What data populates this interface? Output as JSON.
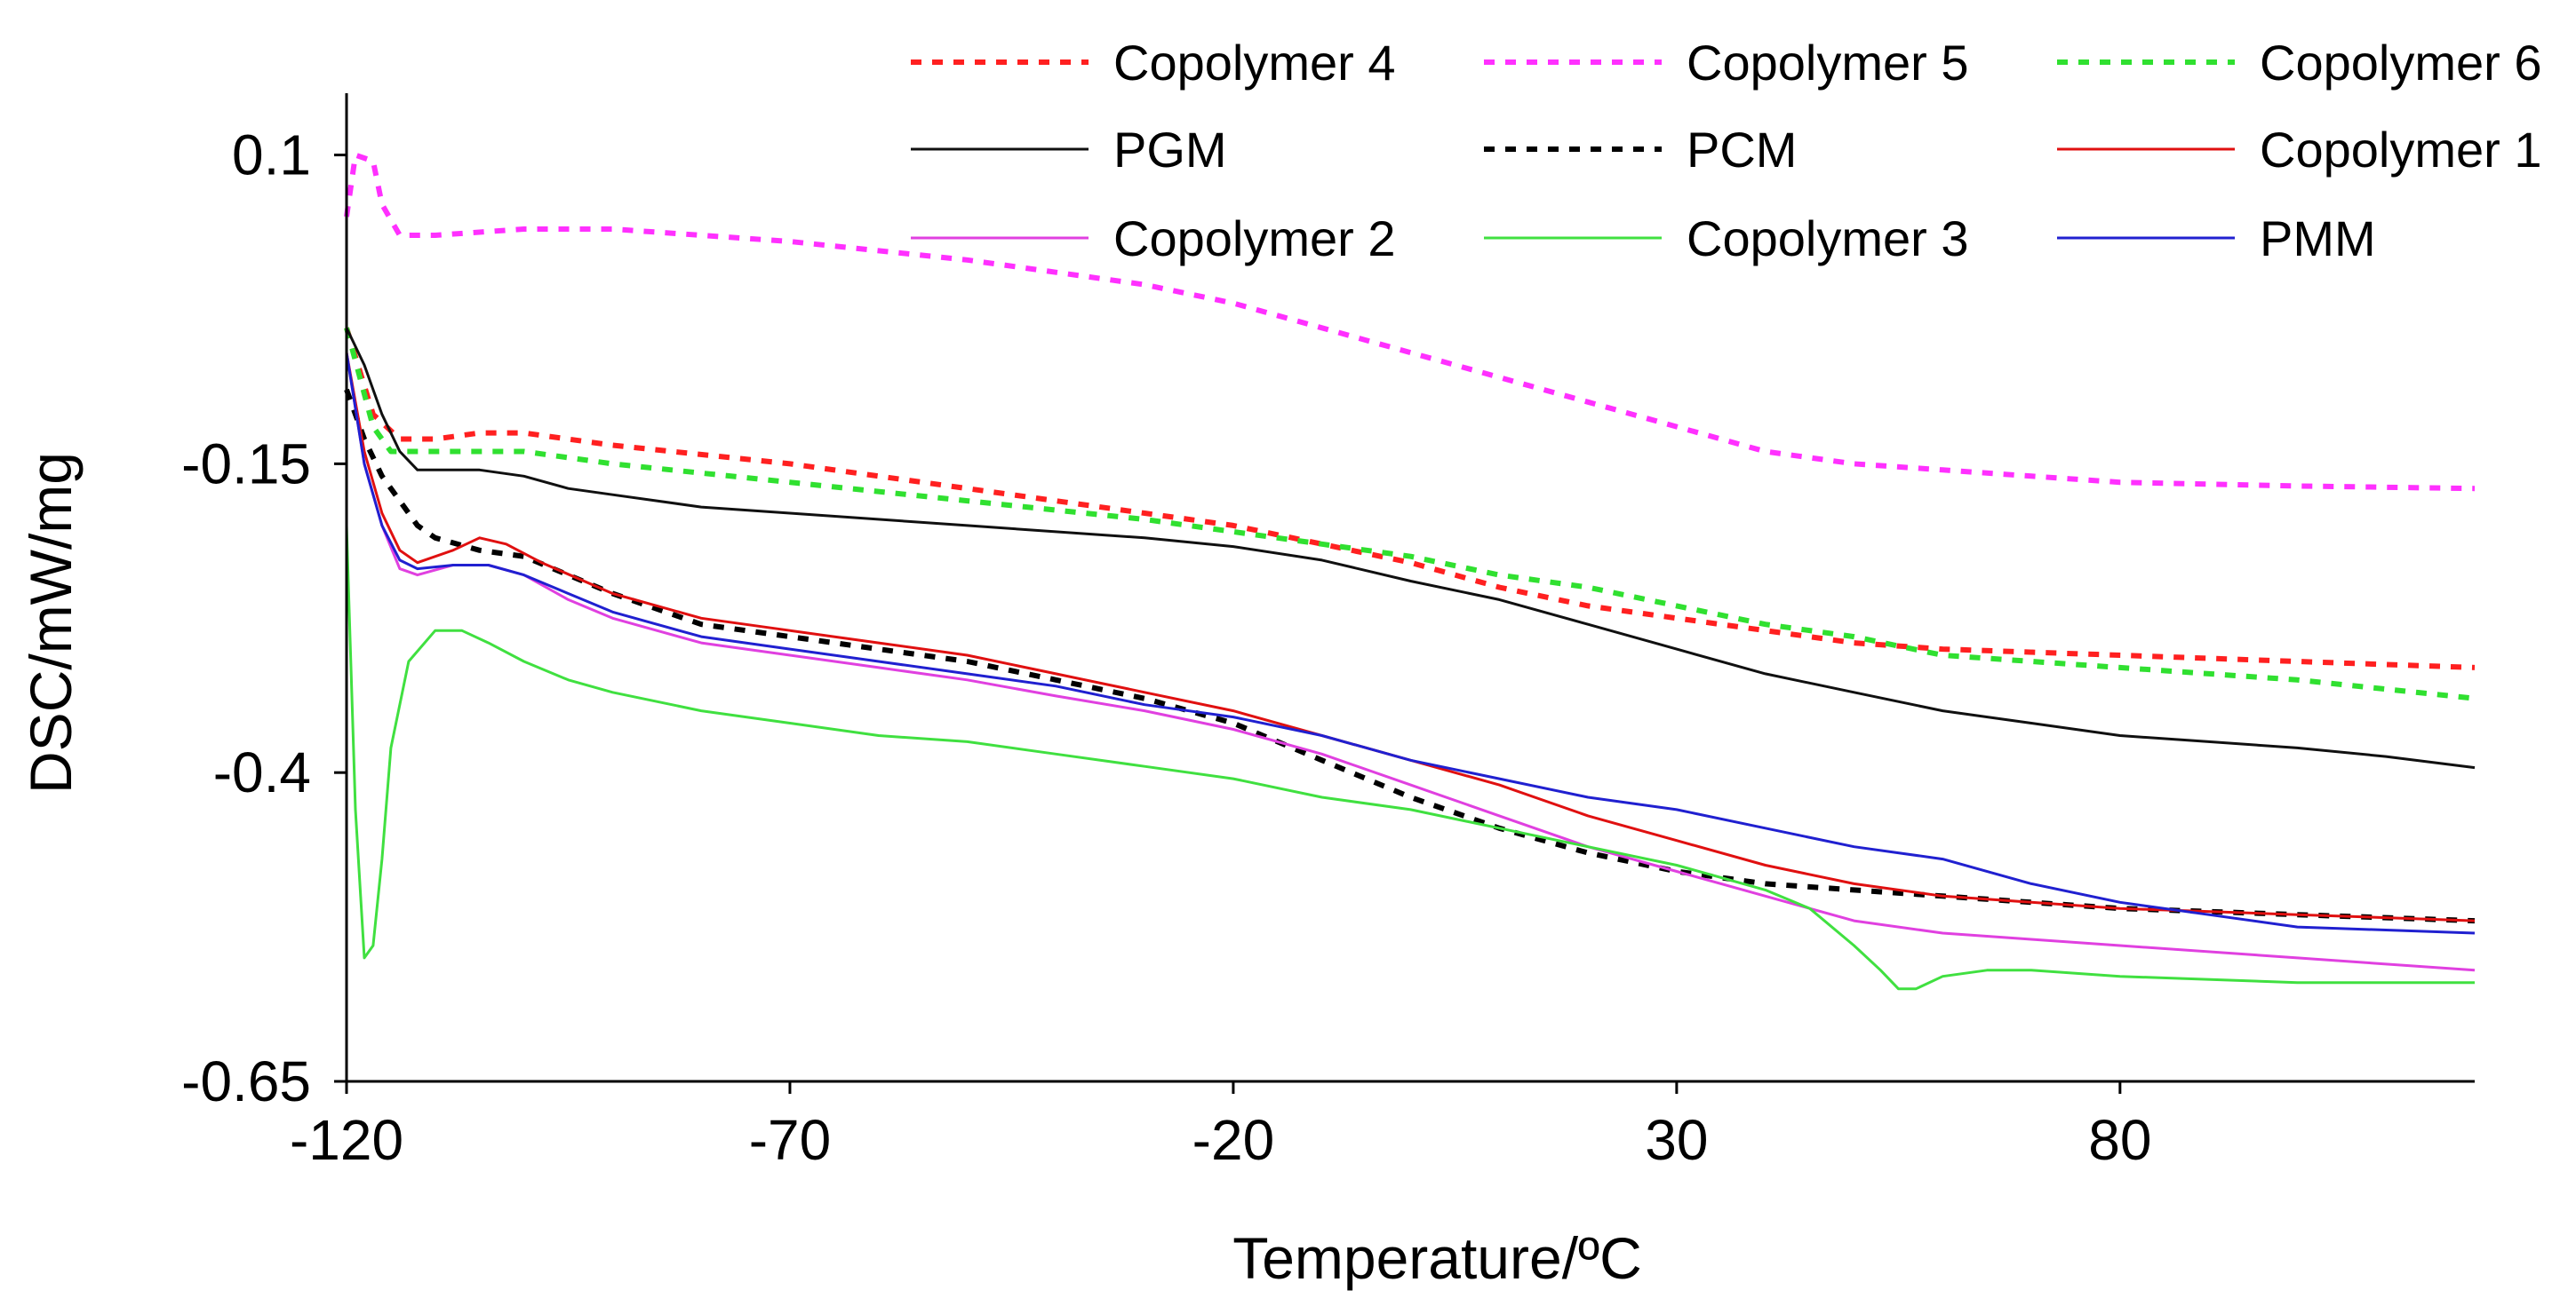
{
  "chart_data": {
    "type": "line",
    "title": "",
    "xlabel": "Temperature/ºC",
    "ylabel": "DSC/mW/mg",
    "xlim": [
      -120,
      120
    ],
    "ylim": [
      -0.65,
      0.15
    ],
    "x_ticks": [
      -120,
      -70,
      -20,
      30,
      80
    ],
    "x_tick_labels": [
      "-120",
      "-70",
      "-20",
      "30",
      "80"
    ],
    "y_ticks": [
      0.1,
      -0.15,
      -0.4,
      -0.65
    ],
    "y_tick_labels": [
      "0.1",
      "-0.15",
      "-0.4",
      "-0.65"
    ],
    "grid": false,
    "legend_position": "top",
    "series": [
      {
        "name": "Copolymer 4",
        "color": "#ff2020",
        "dash": "dotted",
        "points": [
          [
            -120,
            -0.04
          ],
          [
            -117,
            -0.11
          ],
          [
            -114,
            -0.13
          ],
          [
            -110,
            -0.13
          ],
          [
            -105,
            -0.125
          ],
          [
            -100,
            -0.125
          ],
          [
            -90,
            -0.135
          ],
          [
            -70,
            -0.15
          ],
          [
            -50,
            -0.17
          ],
          [
            -30,
            -0.19
          ],
          [
            -20,
            -0.2
          ],
          [
            -10,
            -0.215
          ],
          [
            0,
            -0.23
          ],
          [
            10,
            -0.25
          ],
          [
            20,
            -0.265
          ],
          [
            30,
            -0.275
          ],
          [
            40,
            -0.285
          ],
          [
            50,
            -0.295
          ],
          [
            60,
            -0.3
          ],
          [
            80,
            -0.305
          ],
          [
            100,
            -0.31
          ],
          [
            120,
            -0.315
          ]
        ]
      },
      {
        "name": "Copolymer 5",
        "color": "#ff30ff",
        "dash": "dotted",
        "points": [
          [
            -120,
            0.05
          ],
          [
            -119,
            0.1
          ],
          [
            -117,
            0.095
          ],
          [
            -116,
            0.06
          ],
          [
            -114,
            0.035
          ],
          [
            -110,
            0.035
          ],
          [
            -100,
            0.04
          ],
          [
            -90,
            0.04
          ],
          [
            -70,
            0.03
          ],
          [
            -50,
            0.015
          ],
          [
            -30,
            -0.005
          ],
          [
            -20,
            -0.02
          ],
          [
            -10,
            -0.04
          ],
          [
            0,
            -0.06
          ],
          [
            10,
            -0.08
          ],
          [
            20,
            -0.1
          ],
          [
            30,
            -0.12
          ],
          [
            40,
            -0.14
          ],
          [
            50,
            -0.15
          ],
          [
            60,
            -0.155
          ],
          [
            70,
            -0.16
          ],
          [
            80,
            -0.165
          ],
          [
            100,
            -0.168
          ],
          [
            120,
            -0.17
          ]
        ]
      },
      {
        "name": "Copolymer 6",
        "color": "#30e030",
        "dash": "dotted",
        "points": [
          [
            -120,
            -0.04
          ],
          [
            -117,
            -0.12
          ],
          [
            -115,
            -0.14
          ],
          [
            -110,
            -0.14
          ],
          [
            -105,
            -0.14
          ],
          [
            -100,
            -0.14
          ],
          [
            -90,
            -0.15
          ],
          [
            -70,
            -0.165
          ],
          [
            -50,
            -0.18
          ],
          [
            -30,
            -0.195
          ],
          [
            -20,
            -0.205
          ],
          [
            -10,
            -0.215
          ],
          [
            0,
            -0.225
          ],
          [
            10,
            -0.24
          ],
          [
            20,
            -0.25
          ],
          [
            30,
            -0.265
          ],
          [
            40,
            -0.28
          ],
          [
            50,
            -0.29
          ],
          [
            60,
            -0.305
          ],
          [
            80,
            -0.315
          ],
          [
            100,
            -0.325
          ],
          [
            120,
            -0.34
          ]
        ]
      },
      {
        "name": "PGM",
        "color": "#101010",
        "dash": "solid",
        "points": [
          [
            -120,
            -0.04
          ],
          [
            -118,
            -0.07
          ],
          [
            -116,
            -0.11
          ],
          [
            -114,
            -0.14
          ],
          [
            -112,
            -0.155
          ],
          [
            -110,
            -0.155
          ],
          [
            -105,
            -0.155
          ],
          [
            -100,
            -0.16
          ],
          [
            -95,
            -0.17
          ],
          [
            -90,
            -0.175
          ],
          [
            -80,
            -0.185
          ],
          [
            -70,
            -0.19
          ],
          [
            -50,
            -0.2
          ],
          [
            -30,
            -0.21
          ],
          [
            -20,
            -0.217
          ],
          [
            -10,
            -0.228
          ],
          [
            0,
            -0.245
          ],
          [
            10,
            -0.26
          ],
          [
            20,
            -0.28
          ],
          [
            30,
            -0.3
          ],
          [
            40,
            -0.32
          ],
          [
            50,
            -0.335
          ],
          [
            60,
            -0.35
          ],
          [
            70,
            -0.36
          ],
          [
            80,
            -0.37
          ],
          [
            90,
            -0.375
          ],
          [
            100,
            -0.38
          ],
          [
            110,
            -0.387
          ],
          [
            120,
            -0.396
          ]
        ]
      },
      {
        "name": "PCM",
        "color": "#000000",
        "dash": "dotted",
        "points": [
          [
            -120,
            -0.09
          ],
          [
            -118,
            -0.13
          ],
          [
            -116,
            -0.16
          ],
          [
            -114,
            -0.18
          ],
          [
            -112,
            -0.2
          ],
          [
            -110,
            -0.21
          ],
          [
            -105,
            -0.22
          ],
          [
            -100,
            -0.225
          ],
          [
            -95,
            -0.24
          ],
          [
            -90,
            -0.255
          ],
          [
            -80,
            -0.28
          ],
          [
            -70,
            -0.29
          ],
          [
            -60,
            -0.3
          ],
          [
            -50,
            -0.31
          ],
          [
            -40,
            -0.325
          ],
          [
            -30,
            -0.34
          ],
          [
            -20,
            -0.36
          ],
          [
            -10,
            -0.39
          ],
          [
            0,
            -0.42
          ],
          [
            10,
            -0.445
          ],
          [
            20,
            -0.465
          ],
          [
            30,
            -0.48
          ],
          [
            40,
            -0.49
          ],
          [
            50,
            -0.495
          ],
          [
            60,
            -0.5
          ],
          [
            70,
            -0.505
          ],
          [
            80,
            -0.51
          ],
          [
            100,
            -0.515
          ],
          [
            120,
            -0.52
          ]
        ]
      },
      {
        "name": "Copolymer 1",
        "color": "#e01010",
        "dash": "solid",
        "points": [
          [
            -120,
            -0.06
          ],
          [
            -118,
            -0.14
          ],
          [
            -116,
            -0.19
          ],
          [
            -114,
            -0.22
          ],
          [
            -112,
            -0.23
          ],
          [
            -108,
            -0.22
          ],
          [
            -105,
            -0.21
          ],
          [
            -102,
            -0.215
          ],
          [
            -98,
            -0.23
          ],
          [
            -90,
            -0.255
          ],
          [
            -80,
            -0.275
          ],
          [
            -70,
            -0.285
          ],
          [
            -60,
            -0.295
          ],
          [
            -50,
            -0.305
          ],
          [
            -40,
            -0.32
          ],
          [
            -30,
            -0.335
          ],
          [
            -20,
            -0.35
          ],
          [
            -10,
            -0.37
          ],
          [
            0,
            -0.39
          ],
          [
            10,
            -0.41
          ],
          [
            20,
            -0.435
          ],
          [
            30,
            -0.455
          ],
          [
            40,
            -0.475
          ],
          [
            50,
            -0.49
          ],
          [
            60,
            -0.5
          ],
          [
            70,
            -0.505
          ],
          [
            80,
            -0.51
          ],
          [
            100,
            -0.515
          ],
          [
            120,
            -0.52
          ]
        ]
      },
      {
        "name": "Copolymer 2",
        "color": "#e040e0",
        "dash": "solid",
        "points": [
          [
            -120,
            -0.06
          ],
          [
            -118,
            -0.15
          ],
          [
            -116,
            -0.2
          ],
          [
            -114,
            -0.235
          ],
          [
            -112,
            -0.24
          ],
          [
            -108,
            -0.232
          ],
          [
            -104,
            -0.232
          ],
          [
            -100,
            -0.24
          ],
          [
            -95,
            -0.26
          ],
          [
            -90,
            -0.275
          ],
          [
            -80,
            -0.295
          ],
          [
            -70,
            -0.305
          ],
          [
            -60,
            -0.315
          ],
          [
            -50,
            -0.325
          ],
          [
            -40,
            -0.338
          ],
          [
            -30,
            -0.35
          ],
          [
            -20,
            -0.365
          ],
          [
            -10,
            -0.385
          ],
          [
            0,
            -0.41
          ],
          [
            10,
            -0.435
          ],
          [
            20,
            -0.46
          ],
          [
            30,
            -0.48
          ],
          [
            40,
            -0.5
          ],
          [
            50,
            -0.52
          ],
          [
            60,
            -0.53
          ],
          [
            70,
            -0.535
          ],
          [
            80,
            -0.54
          ],
          [
            100,
            -0.55
          ],
          [
            120,
            -0.56
          ]
        ]
      },
      {
        "name": "Copolymer 3",
        "color": "#40e040",
        "dash": "solid",
        "points": [
          [
            -120,
            -0.2
          ],
          [
            -119,
            -0.43
          ],
          [
            -118,
            -0.55
          ],
          [
            -117,
            -0.54
          ],
          [
            -116,
            -0.47
          ],
          [
            -115,
            -0.38
          ],
          [
            -113,
            -0.31
          ],
          [
            -110,
            -0.285
          ],
          [
            -107,
            -0.285
          ],
          [
            -104,
            -0.295
          ],
          [
            -100,
            -0.31
          ],
          [
            -95,
            -0.325
          ],
          [
            -90,
            -0.335
          ],
          [
            -80,
            -0.35
          ],
          [
            -70,
            -0.36
          ],
          [
            -60,
            -0.37
          ],
          [
            -50,
            -0.375
          ],
          [
            -40,
            -0.385
          ],
          [
            -30,
            -0.395
          ],
          [
            -20,
            -0.405
          ],
          [
            -10,
            -0.42
          ],
          [
            0,
            -0.43
          ],
          [
            10,
            -0.445
          ],
          [
            20,
            -0.46
          ],
          [
            30,
            -0.475
          ],
          [
            35,
            -0.485
          ],
          [
            40,
            -0.495
          ],
          [
            45,
            -0.51
          ],
          [
            50,
            -0.54
          ],
          [
            53,
            -0.56
          ],
          [
            55,
            -0.575
          ],
          [
            57,
            -0.575
          ],
          [
            60,
            -0.565
          ],
          [
            65,
            -0.56
          ],
          [
            70,
            -0.56
          ],
          [
            80,
            -0.565
          ],
          [
            100,
            -0.57
          ],
          [
            120,
            -0.57
          ]
        ]
      },
      {
        "name": "PMM",
        "color": "#2020d0",
        "dash": "solid",
        "points": [
          [
            -120,
            -0.06
          ],
          [
            -118,
            -0.15
          ],
          [
            -116,
            -0.2
          ],
          [
            -114,
            -0.228
          ],
          [
            -112,
            -0.235
          ],
          [
            -108,
            -0.232
          ],
          [
            -104,
            -0.232
          ],
          [
            -100,
            -0.24
          ],
          [
            -95,
            -0.255
          ],
          [
            -90,
            -0.27
          ],
          [
            -80,
            -0.29
          ],
          [
            -70,
            -0.3
          ],
          [
            -60,
            -0.31
          ],
          [
            -50,
            -0.32
          ],
          [
            -40,
            -0.33
          ],
          [
            -30,
            -0.345
          ],
          [
            -20,
            -0.355
          ],
          [
            -10,
            -0.37
          ],
          [
            0,
            -0.39
          ],
          [
            10,
            -0.405
          ],
          [
            20,
            -0.42
          ],
          [
            30,
            -0.43
          ],
          [
            40,
            -0.445
          ],
          [
            50,
            -0.46
          ],
          [
            60,
            -0.47
          ],
          [
            70,
            -0.49
          ],
          [
            80,
            -0.505
          ],
          [
            90,
            -0.515
          ],
          [
            100,
            -0.525
          ],
          [
            120,
            -0.53
          ]
        ]
      }
    ]
  }
}
